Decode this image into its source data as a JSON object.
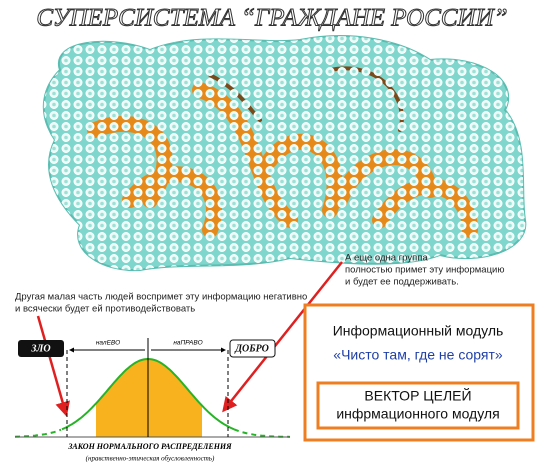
{
  "header": {
    "title": "СУПЕРСИСТЕМА “ГРАЖДАНЕ РОССИИ”"
  },
  "annotations": {
    "accept": [
      "А еще одна группа",
      "полностью примет эту информацию",
      "и будет ее поддерживать."
    ],
    "reject": [
      "Другая малая часть людей воспримет эту информацию негативно",
      "и всячески будет ей противодействовать"
    ]
  },
  "distribution": {
    "evil": "ЗЛО",
    "left": "налЕВО",
    "right": "наПРАВО",
    "good": "ДОБРО",
    "caption": "ЗАКОН НОРМАЛЬНОГО РАСПРЕДЕЛЕНИЯ",
    "subcaption": "(нравственно-этическая обусловленность)"
  },
  "module": {
    "title": "Информационный модуль",
    "slogan": "«Чисто там, где не сорят»",
    "vector": [
      "ВЕКТОР ЦЕЛЕЙ",
      "инфрмационного модуля"
    ]
  }
}
